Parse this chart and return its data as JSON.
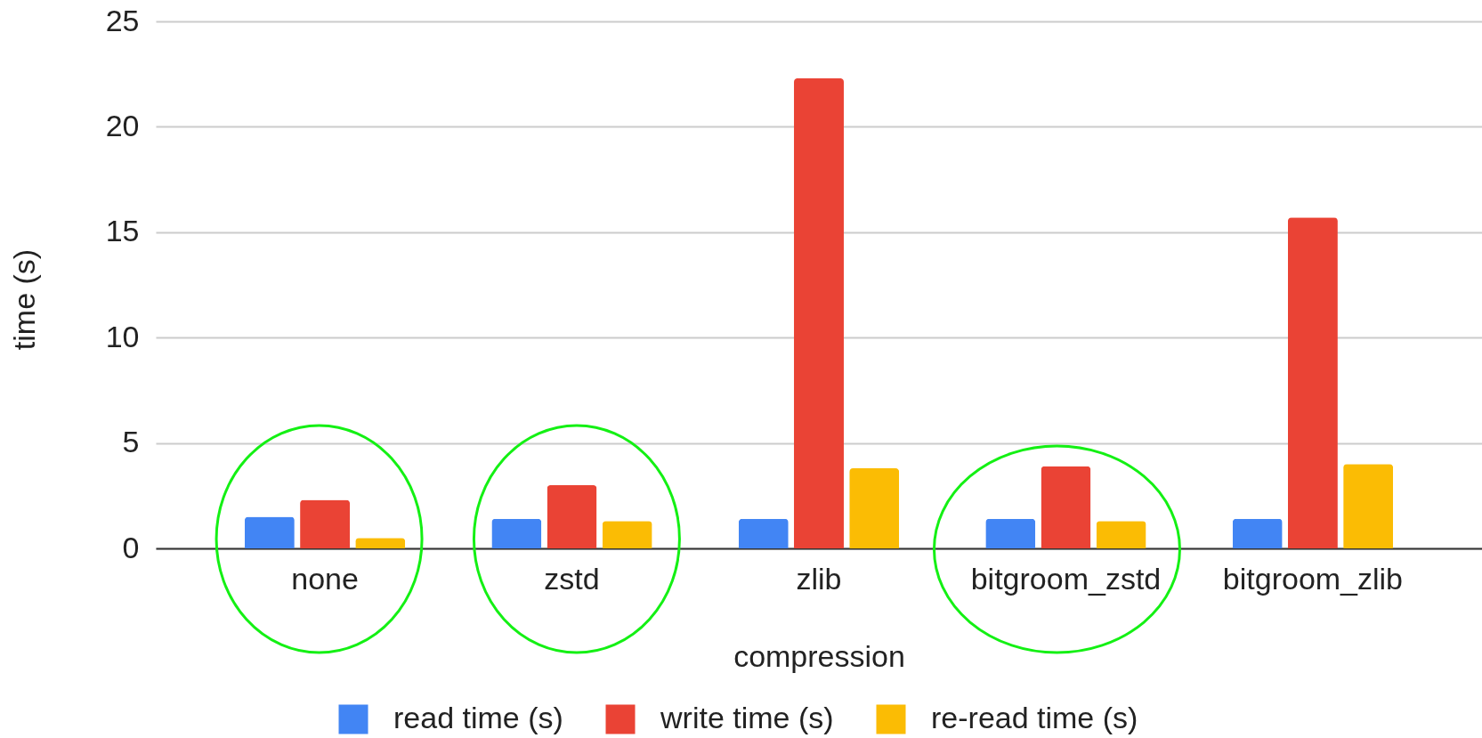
{
  "chart_data": {
    "type": "bar",
    "xlabel": "compression",
    "ylabel": "time (s)",
    "categories": [
      "none",
      "zstd",
      "zlib",
      "bitgroom_zstd",
      "bitgroom_zlib"
    ],
    "series": [
      {
        "name": "read time (s)",
        "color": "#4285f4",
        "values": [
          1.5,
          1.4,
          1.4,
          1.4,
          1.4
        ]
      },
      {
        "name": "write time (s)",
        "color": "#ea4335",
        "values": [
          2.3,
          3.0,
          22.3,
          3.9,
          15.7
        ]
      },
      {
        "name": "re-read time (s)",
        "color": "#fbbc04",
        "values": [
          0.5,
          1.3,
          3.8,
          1.3,
          4.0
        ]
      }
    ],
    "ylim": [
      0,
      25
    ],
    "yticks": [
      0,
      5,
      10,
      15,
      20,
      25
    ],
    "grid": "y",
    "legend": "bottom"
  }
}
